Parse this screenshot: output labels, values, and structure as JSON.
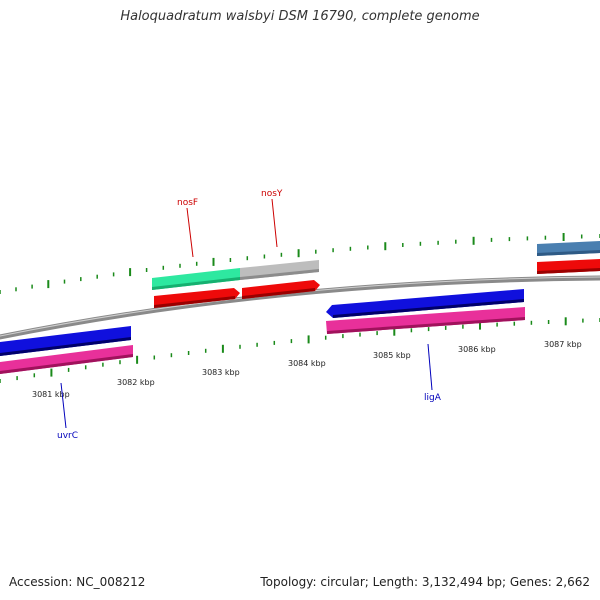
{
  "title": "Haloquadratum walsbyi DSM 16790, complete genome",
  "footer": {
    "accession": "Accession: NC_008212",
    "summary": "Topology: circular; Length: 3,132,494 bp; Genes: 2,662"
  },
  "colors": {
    "backbone": "#8a8a8a",
    "tick_green": "#1a8a1a",
    "blue_gene": "#1010dd",
    "pink_gene": "#e8309a",
    "red_gene": "#ee0a0a",
    "aqua_gene": "#2ee8a0",
    "gray_gene": "#bdbdbd",
    "steel_gene": "#4a7fb0",
    "label_red": "#cc0000",
    "label_blue": "#0000bb"
  },
  "ticks": {
    "labels": [
      "3081 kbp",
      "3082 kbp",
      "3083 kbp",
      "3084 kbp",
      "3085 kbp",
      "3086 kbp",
      "3087 kbp"
    ]
  },
  "genes": {
    "nosF": "nosF",
    "nosY": "nosY",
    "uvrC": "uvrC",
    "ligA": "ligA"
  }
}
